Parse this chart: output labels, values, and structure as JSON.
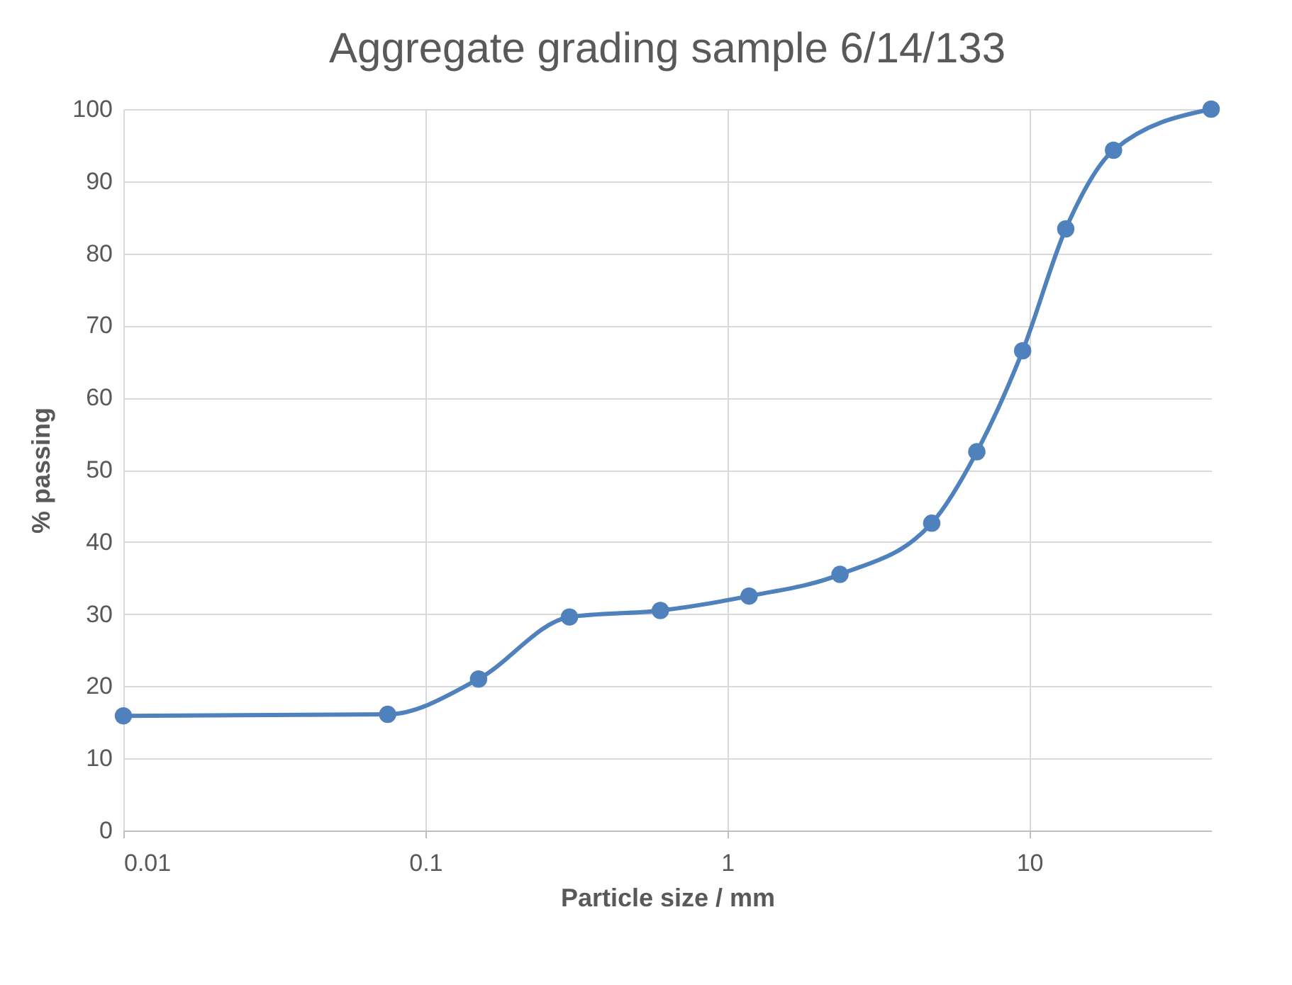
{
  "chart_data": {
    "type": "line",
    "title": "Aggregate grading sample 6/14/133",
    "xlabel": "Particle size / mm",
    "ylabel": "% passing",
    "x": [
      0.01,
      0.075,
      0.15,
      0.3,
      0.6,
      1.18,
      2.36,
      4.75,
      6.7,
      9.5,
      13.2,
      19,
      40
    ],
    "series": [
      {
        "color": "#4f81bd",
        "values": [
          15.9,
          16.1,
          21.0,
          29.6,
          30.5,
          32.5,
          35.5,
          42.6,
          52.5,
          66.5,
          83.4,
          94.3,
          100
        ]
      }
    ],
    "log": "x",
    "xlim": [
      0.01,
      40
    ],
    "xticks": [
      0.01,
      0.1,
      1,
      10
    ],
    "ylim": [
      0,
      100
    ],
    "yticks": [
      0,
      10,
      20,
      30,
      40,
      50,
      60,
      70,
      80,
      90,
      100
    ],
    "grid": true,
    "marker": "circle",
    "line_style": "solid",
    "legend": false
  }
}
